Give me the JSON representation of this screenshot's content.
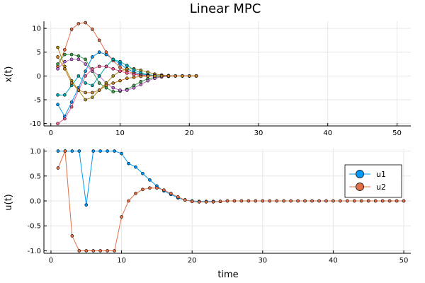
{
  "chart_data": [
    {
      "type": "line",
      "title": "Linear MPC",
      "xlabel": "",
      "ylabel": "x(t)",
      "xlim": [
        -1,
        52
      ],
      "ylim": [
        -10.5,
        11.5
      ],
      "xticks": [
        0,
        10,
        20,
        30,
        40,
        50
      ],
      "yticks": [
        -10,
        -5,
        0,
        5,
        10
      ],
      "grid": true,
      "markers": true,
      "series_step": 1,
      "series_start": 1,
      "series": [
        {
          "color": "#009af9",
          "values": [
            -6.0,
            -8.5,
            -5.5,
            -2.5,
            1.0,
            4.0,
            5.0,
            4.5,
            3.5,
            2.5,
            1.5,
            0.8,
            0.4,
            0.2,
            0.1,
            0.05,
            0.02,
            0.01,
            0.0,
            0.0,
            0.0
          ]
        },
        {
          "color": "#e26f46",
          "values": [
            2.0,
            5.5,
            9.8,
            11.0,
            11.2,
            9.8,
            7.5,
            5.0,
            3.2,
            1.8,
            1.0,
            0.5,
            0.2,
            0.1,
            0.05,
            0.02,
            0.0,
            0.0,
            0.0,
            0.0,
            0.0
          ]
        },
        {
          "color": "#3da44d",
          "values": [
            2.5,
            4.5,
            4.5,
            4.2,
            3.5,
            1.0,
            -1.5,
            -2.5,
            -3.3,
            -3.2,
            -2.8,
            -2.0,
            -1.2,
            -0.6,
            -0.3,
            -0.1,
            -0.05,
            0.0,
            0.0,
            0.0,
            0.0
          ]
        },
        {
          "color": "#c271d2",
          "values": [
            1.5,
            3.0,
            3.5,
            3.5,
            2.5,
            1.0,
            0.0,
            -1.5,
            -2.5,
            -3.0,
            -3.0,
            -2.5,
            -1.8,
            -1.0,
            -0.5,
            -0.2,
            -0.1,
            0.0,
            0.0,
            0.0,
            0.0
          ]
        },
        {
          "color": "#ac8d18",
          "values": [
            6.0,
            2.0,
            -1.0,
            -3.0,
            -5.0,
            -4.5,
            -3.0,
            -1.5,
            0.0,
            1.0,
            1.5,
            1.5,
            1.2,
            0.8,
            0.4,
            0.2,
            0.1,
            0.0,
            0.0,
            0.0,
            0.0
          ]
        },
        {
          "color": "#00a9ad",
          "values": [
            -4.0,
            -4.0,
            -2.0,
            0.0,
            -1.5,
            -2.0,
            0.0,
            2.0,
            3.5,
            3.0,
            2.2,
            1.3,
            0.7,
            0.3,
            0.1,
            0.05,
            0.0,
            0.0,
            0.0,
            0.0,
            0.0
          ]
        },
        {
          "color": "#ed5d92",
          "values": [
            -10.0,
            -9.0,
            -6.5,
            -3.0,
            0.0,
            1.5,
            2.0,
            2.0,
            1.5,
            1.0,
            0.6,
            0.3,
            0.1,
            0.05,
            0.0,
            0.0,
            0.0,
            0.0,
            0.0,
            0.0,
            0.0
          ]
        },
        {
          "color": "#c68225",
          "values": [
            4.0,
            1.5,
            -1.5,
            -3.0,
            -3.5,
            -3.5,
            -3.0,
            -2.0,
            -1.5,
            -1.0,
            -0.5,
            -0.3,
            -0.1,
            -0.05,
            0.0,
            0.0,
            0.0,
            0.0,
            0.0,
            0.0,
            0.0
          ]
        }
      ]
    },
    {
      "type": "line",
      "xlabel": "time",
      "ylabel": "u(t)",
      "xlim": [
        -1,
        51
      ],
      "ylim": [
        -1.05,
        1.05
      ],
      "xticks": [
        0,
        10,
        20,
        30,
        40,
        50
      ],
      "yticks": [
        -1.0,
        -0.5,
        0.0,
        0.5,
        1.0
      ],
      "ytick_labels": [
        "-1.0",
        "-0.5",
        "0.0",
        "0.5",
        "1.0"
      ],
      "grid": true,
      "markers": true,
      "legend_position": "right",
      "series_step": 1,
      "series_start": 1,
      "series": [
        {
          "name": "u1",
          "color": "#009af9",
          "values": [
            1.0,
            1.0,
            1.0,
            1.0,
            -0.08,
            1.0,
            1.0,
            1.0,
            1.0,
            0.95,
            0.75,
            0.68,
            0.55,
            0.42,
            0.3,
            0.2,
            0.13,
            0.06,
            0.02,
            0.0,
            -0.01,
            -0.01,
            -0.01,
            -0.01,
            0.0,
            0.0,
            0.0,
            0.0,
            0.0,
            0.0,
            0.0,
            0.0,
            0.0,
            0.0,
            0.0,
            0.0,
            0.0,
            0.0,
            0.0,
            0.0,
            0.0,
            0.0,
            0.0,
            0.0,
            0.0,
            0.0,
            0.0,
            0.0,
            0.0,
            0.0
          ]
        },
        {
          "name": "u2",
          "color": "#e26f46",
          "values": [
            0.66,
            1.0,
            -0.7,
            -1.0,
            -1.0,
            -1.0,
            -1.0,
            -1.0,
            -1.0,
            -0.32,
            0.0,
            0.15,
            0.23,
            0.26,
            0.26,
            0.22,
            0.15,
            0.08,
            0.02,
            -0.01,
            -0.02,
            -0.02,
            -0.02,
            -0.01,
            0.0,
            0.0,
            0.0,
            0.0,
            0.0,
            0.0,
            0.0,
            0.0,
            0.0,
            0.0,
            0.0,
            0.0,
            0.0,
            0.0,
            0.0,
            0.0,
            0.0,
            0.0,
            0.0,
            0.0,
            0.0,
            0.0,
            0.0,
            0.0,
            0.0,
            0.0
          ]
        }
      ]
    }
  ]
}
